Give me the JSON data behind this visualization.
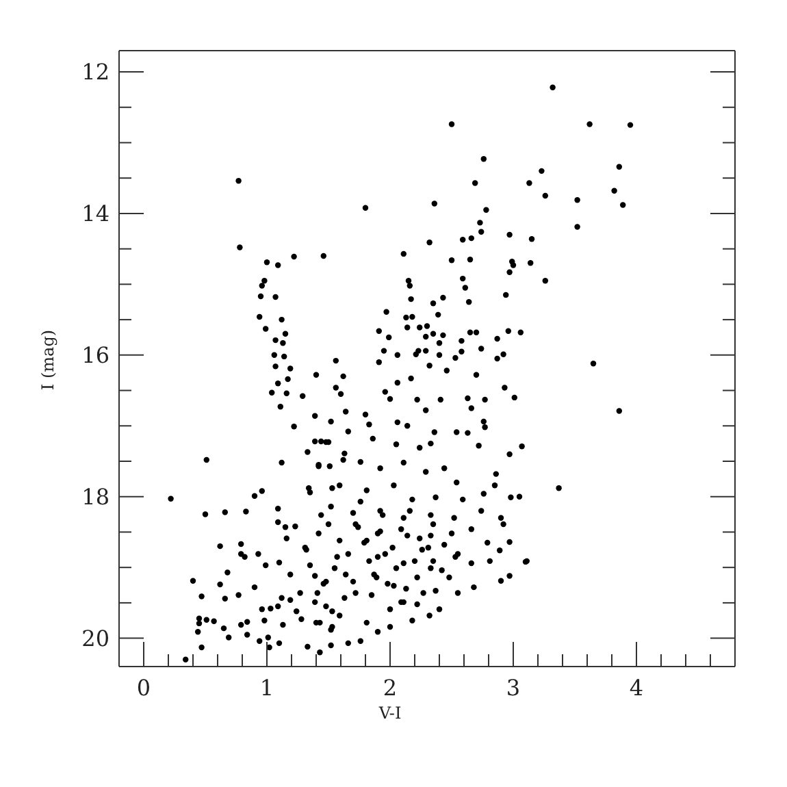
{
  "chart_data": {
    "type": "scatter",
    "xlabel": "V-I",
    "ylabel": "I (mag)",
    "color": "#000000",
    "marker": "circle",
    "xlim": [
      -0.2,
      4.8
    ],
    "xticks": [
      0,
      {
        "value": 0.2,
        "label": null
      },
      {
        "value": 0.4,
        "label": null
      },
      {
        "value": 0.6,
        "label": null
      },
      {
        "value": 0.8,
        "label": null
      },
      1,
      {
        "value": 1.2,
        "label": null
      },
      {
        "value": 1.4,
        "label": null
      },
      {
        "value": 1.6,
        "label": null
      },
      {
        "value": 1.8,
        "label": null
      },
      2,
      {
        "value": 2.2,
        "label": null
      },
      {
        "value": 2.4,
        "label": null
      },
      {
        "value": 2.6,
        "label": null
      },
      {
        "value": 2.8,
        "label": null
      },
      3,
      {
        "value": 3.2,
        "label": null
      },
      {
        "value": 3.4,
        "label": null
      },
      {
        "value": 3.6,
        "label": null
      },
      {
        "value": 3.8,
        "label": null
      },
      4,
      {
        "value": 4.2,
        "label": null
      },
      {
        "value": 4.4,
        "label": null
      },
      {
        "value": 4.6,
        "label": null
      }
    ],
    "ylim": [
      20.4,
      11.7
    ],
    "yticks": [
      12,
      {
        "value": 12.5,
        "label": null
      },
      {
        "value": 13,
        "label": null
      },
      {
        "value": 13.5,
        "label": null
      },
      14,
      {
        "value": 14.5,
        "label": null
      },
      {
        "value": 15,
        "label": null
      },
      {
        "value": 15.5,
        "label": null
      },
      16,
      {
        "value": 16.5,
        "label": null
      },
      {
        "value": 17,
        "label": null
      },
      {
        "value": 17.5,
        "label": null
      },
      18,
      {
        "value": 18.5,
        "label": null
      },
      {
        "value": 19,
        "label": null
      },
      {
        "value": 19.5,
        "label": null
      },
      20
    ],
    "x": [
      0.77,
      0.78,
      1.8,
      1.0,
      1.09,
      1.22,
      1.46,
      2.11,
      0.98,
      0.96,
      0.95,
      1.07,
      0.94,
      1.12,
      0.99,
      1.15,
      1.07,
      1.13,
      1.97,
      1.91,
      1.99,
      2.15,
      2.17,
      2.13,
      2.14,
      3.32,
      2.5,
      3.62,
      3.95,
      2.76,
      3.86,
      3.23,
      2.69,
      3.13,
      3.82,
      3.26,
      2.36,
      3.52,
      3.89,
      2.78,
      2.73,
      2.74,
      3.52,
      2.32,
      2.59,
      2.66,
      2.97,
      3.15,
      2.5,
      2.65,
      2.99,
      3.0,
      3.14,
      2.97,
      3.26,
      2.59,
      2.61,
      2.94,
      2.35,
      2.43,
      2.64,
      2.39,
      2.96,
      3.06,
      2.87,
      2.7,
      3.65,
      3.86,
      3.37,
      3.11,
      0.22,
      0.51,
      0.5,
      0.66,
      0.83,
      0.9,
      0.96,
      0.62,
      0.79,
      0.4,
      0.47,
      0.62,
      0.68,
      0.45,
      0.45,
      0.51,
      0.57,
      0.44,
      0.47,
      0.34,
      0.65,
      0.69,
      0.66,
      0.77,
      0.79,
      0.84,
      0.94,
      1.01,
      1.02,
      1.1,
      1.33,
      1.43,
      0.79,
      0.82,
      0.93,
      0.9,
      0.96,
      0.84,
      1.06,
      1.14,
      1.07,
      1.19,
      1.09,
      1.17,
      1.04,
      1.16,
      1.11,
      1.29,
      1.4,
      1.22,
      1.39,
      1.12,
      1.39,
      1.44,
      1.33,
      1.42,
      1.34,
      1.09,
      1.09,
      1.15,
      1.16,
      1.23,
      0.99,
      1.1,
      1.19,
      1.12,
      1.03,
      1.19,
      1.28,
      1.43,
      1.41,
      1.32,
      1.39,
      2.16,
      2.18,
      2.24,
      2.3,
      2.29,
      2.35,
      2.43,
      2.4,
      2.23,
      2.58,
      2.65,
      2.74,
      1.56,
      1.62,
      1.56,
      1.6,
      1.95,
      2.06,
      2.21,
      2.29,
      2.4,
      2.53,
      2.58,
      2.87,
      2.92,
      1.91,
      2.32,
      2.46,
      2.7,
      2.93,
      2.06,
      2.17,
      1.96,
      2.0,
      2.22,
      2.41,
      2.63,
      2.77,
      3.01,
      2.29,
      2.66,
      1.64,
      1.8,
      1.52,
      1.66,
      1.83,
      2.06,
      2.14,
      2.36,
      2.54,
      2.63,
      2.76,
      2.77,
      3.07,
      1.86,
      2.05,
      2.24,
      2.33,
      2.72,
      2.97,
      1.48,
      1.62,
      1.51,
      1.76,
      1.92,
      2.11,
      2.29,
      2.44,
      2.54,
      2.86,
      2.85,
      2.98,
      3.05,
      2.76,
      1.59,
      1.81,
      2.03,
      2.18,
      2.37,
      2.59,
      2.74,
      2.9,
      2.92,
      1.52,
      1.7,
      1.92,
      2.11,
      2.33,
      2.52,
      2.66,
      2.79,
      2.89,
      2.97,
      3.1,
      2.81,
      2.9,
      2.97,
      2.66,
      2.68,
      2.55,
      2.4,
      2.32,
      2.18,
      2.0,
      1.9,
      1.76,
      1.66,
      1.53,
      1.59,
      1.48,
      1.81,
      2.11,
      2.37,
      2.48,
      2.55,
      2.44,
      2.26,
      2.11,
      1.96,
      1.81,
      1.66,
      1.55,
      1.48,
      1.7,
      1.89,
      2.03,
      2.22,
      2.33,
      1.92,
      2.14,
      2.33,
      1.74,
      1.59,
      1.85,
      1.63,
      2.0,
      2.22,
      1.52,
      1.31,
      1.42,
      1.5,
      1.35,
      1.46,
      1.57,
      1.39,
      1.53,
      1.24,
      1.09,
      0.98,
      1.13,
      1.4,
      1.52,
      1.27,
      1.44,
      1.35,
      1.53,
      1.42,
      1.63,
      1.5,
      1.72,
      1.79,
      1.9,
      2.02,
      2.09,
      2.2,
      2.31,
      2.42,
      2.53,
      1.87,
      1.98,
      2.13,
      2.27,
      1.72,
      1.64,
      1.76,
      1.94,
      2.16,
      2.35,
      2.5,
      1.9,
      2.24,
      1.83,
      2.05,
      2.35,
      2.09
    ],
    "values": [
      13.54,
      14.48,
      13.92,
      14.69,
      14.73,
      14.61,
      14.6,
      14.57,
      14.95,
      15.02,
      15.17,
      15.18,
      15.46,
      15.5,
      15.63,
      15.7,
      15.79,
      15.83,
      15.39,
      15.66,
      15.75,
      14.95,
      15.21,
      15.47,
      15.61,
      12.22,
      12.74,
      12.74,
      12.75,
      13.23,
      13.34,
      13.4,
      13.57,
      13.57,
      13.68,
      13.75,
      13.86,
      13.81,
      13.88,
      13.95,
      14.13,
      14.26,
      14.19,
      14.41,
      14.37,
      14.35,
      14.3,
      14.36,
      14.66,
      14.65,
      14.68,
      14.73,
      14.7,
      14.83,
      14.95,
      14.92,
      15.05,
      15.15,
      15.27,
      15.19,
      15.25,
      15.43,
      15.66,
      15.68,
      15.77,
      15.68,
      16.12,
      16.79,
      17.88,
      18.91,
      18.03,
      17.48,
      18.25,
      18.22,
      18.21,
      17.99,
      17.92,
      18.7,
      18.67,
      19.19,
      19.41,
      19.24,
      19.07,
      19.72,
      19.79,
      19.74,
      19.76,
      19.91,
      20.13,
      20.3,
      19.86,
      19.99,
      19.44,
      19.39,
      19.81,
      19.95,
      20.04,
      19.99,
      20.13,
      20.07,
      20.12,
      20.2,
      18.81,
      18.85,
      18.81,
      19.28,
      19.59,
      19.77,
      16.0,
      16.02,
      16.16,
      16.19,
      16.4,
      16.34,
      16.53,
      16.54,
      16.73,
      16.58,
      16.28,
      17.01,
      16.86,
      17.52,
      17.22,
      17.22,
      17.37,
      17.57,
      17.88,
      18.17,
      18.36,
      18.43,
      18.59,
      18.42,
      18.97,
      18.93,
      19.1,
      19.43,
      19.58,
      19.46,
      19.73,
      19.78,
      19.36,
      18.75,
      19.12,
      15.02,
      15.46,
      15.61,
      15.59,
      15.74,
      15.7,
      15.72,
      15.83,
      15.94,
      15.8,
      15.68,
      15.91,
      16.08,
      16.3,
      16.46,
      16.55,
      15.94,
      16.0,
      15.99,
      15.94,
      16.0,
      16.04,
      15.95,
      16.05,
      15.99,
      16.1,
      16.15,
      16.22,
      16.28,
      16.46,
      16.39,
      16.33,
      16.52,
      16.62,
      16.63,
      16.63,
      16.61,
      16.63,
      16.6,
      16.78,
      16.75,
      16.8,
      16.84,
      16.94,
      17.08,
      16.98,
      16.95,
      17.0,
      17.09,
      17.09,
      17.1,
      16.94,
      17.02,
      17.29,
      17.18,
      17.26,
      17.31,
      17.25,
      17.28,
      17.4,
      17.23,
      17.48,
      17.57,
      17.51,
      17.6,
      17.52,
      17.65,
      17.6,
      17.8,
      17.68,
      17.84,
      18.01,
      18.0,
      17.96,
      17.84,
      17.91,
      17.84,
      18.04,
      18.01,
      18.04,
      18.2,
      18.3,
      18.39,
      18.14,
      18.23,
      18.2,
      18.3,
      18.26,
      18.3,
      18.46,
      18.65,
      18.76,
      18.64,
      18.92,
      18.91,
      19.19,
      19.12,
      18.94,
      19.28,
      19.36,
      19.59,
      19.68,
      19.75,
      19.84,
      19.91,
      20.04,
      20.07,
      19.84,
      19.68,
      19.55,
      19.78,
      19.49,
      19.33,
      19.14,
      18.81,
      18.68,
      18.75,
      18.94,
      18.81,
      18.62,
      18.81,
      19.01,
      19.2,
      19.2,
      19.14,
      19.26,
      19.14,
      19.01,
      18.49,
      18.55,
      18.55,
      18.43,
      18.62,
      19.39,
      19.43,
      19.59,
      19.52,
      20.1,
      18.72,
      18.52,
      18.39,
      18.97,
      19.23,
      18.85,
      19.49,
      19.62,
      19.62,
      19.55,
      19.75,
      19.81,
      19.78,
      19.88,
      19.36,
      18.26,
      17.94,
      17.88,
      17.55,
      17.39,
      17.23,
      18.39,
      18.65,
      18.85,
      18.72,
      18.46,
      18.91,
      18.72,
      19.04,
      18.85,
      19.1,
      19.23,
      19.3,
      19.36,
      19.36,
      19.1,
      18.07,
      18.26,
      18.2,
      18.39,
      18.52,
      18.52,
      18.59,
      18.91,
      19.01,
      18.91,
      19.49
    ]
  }
}
